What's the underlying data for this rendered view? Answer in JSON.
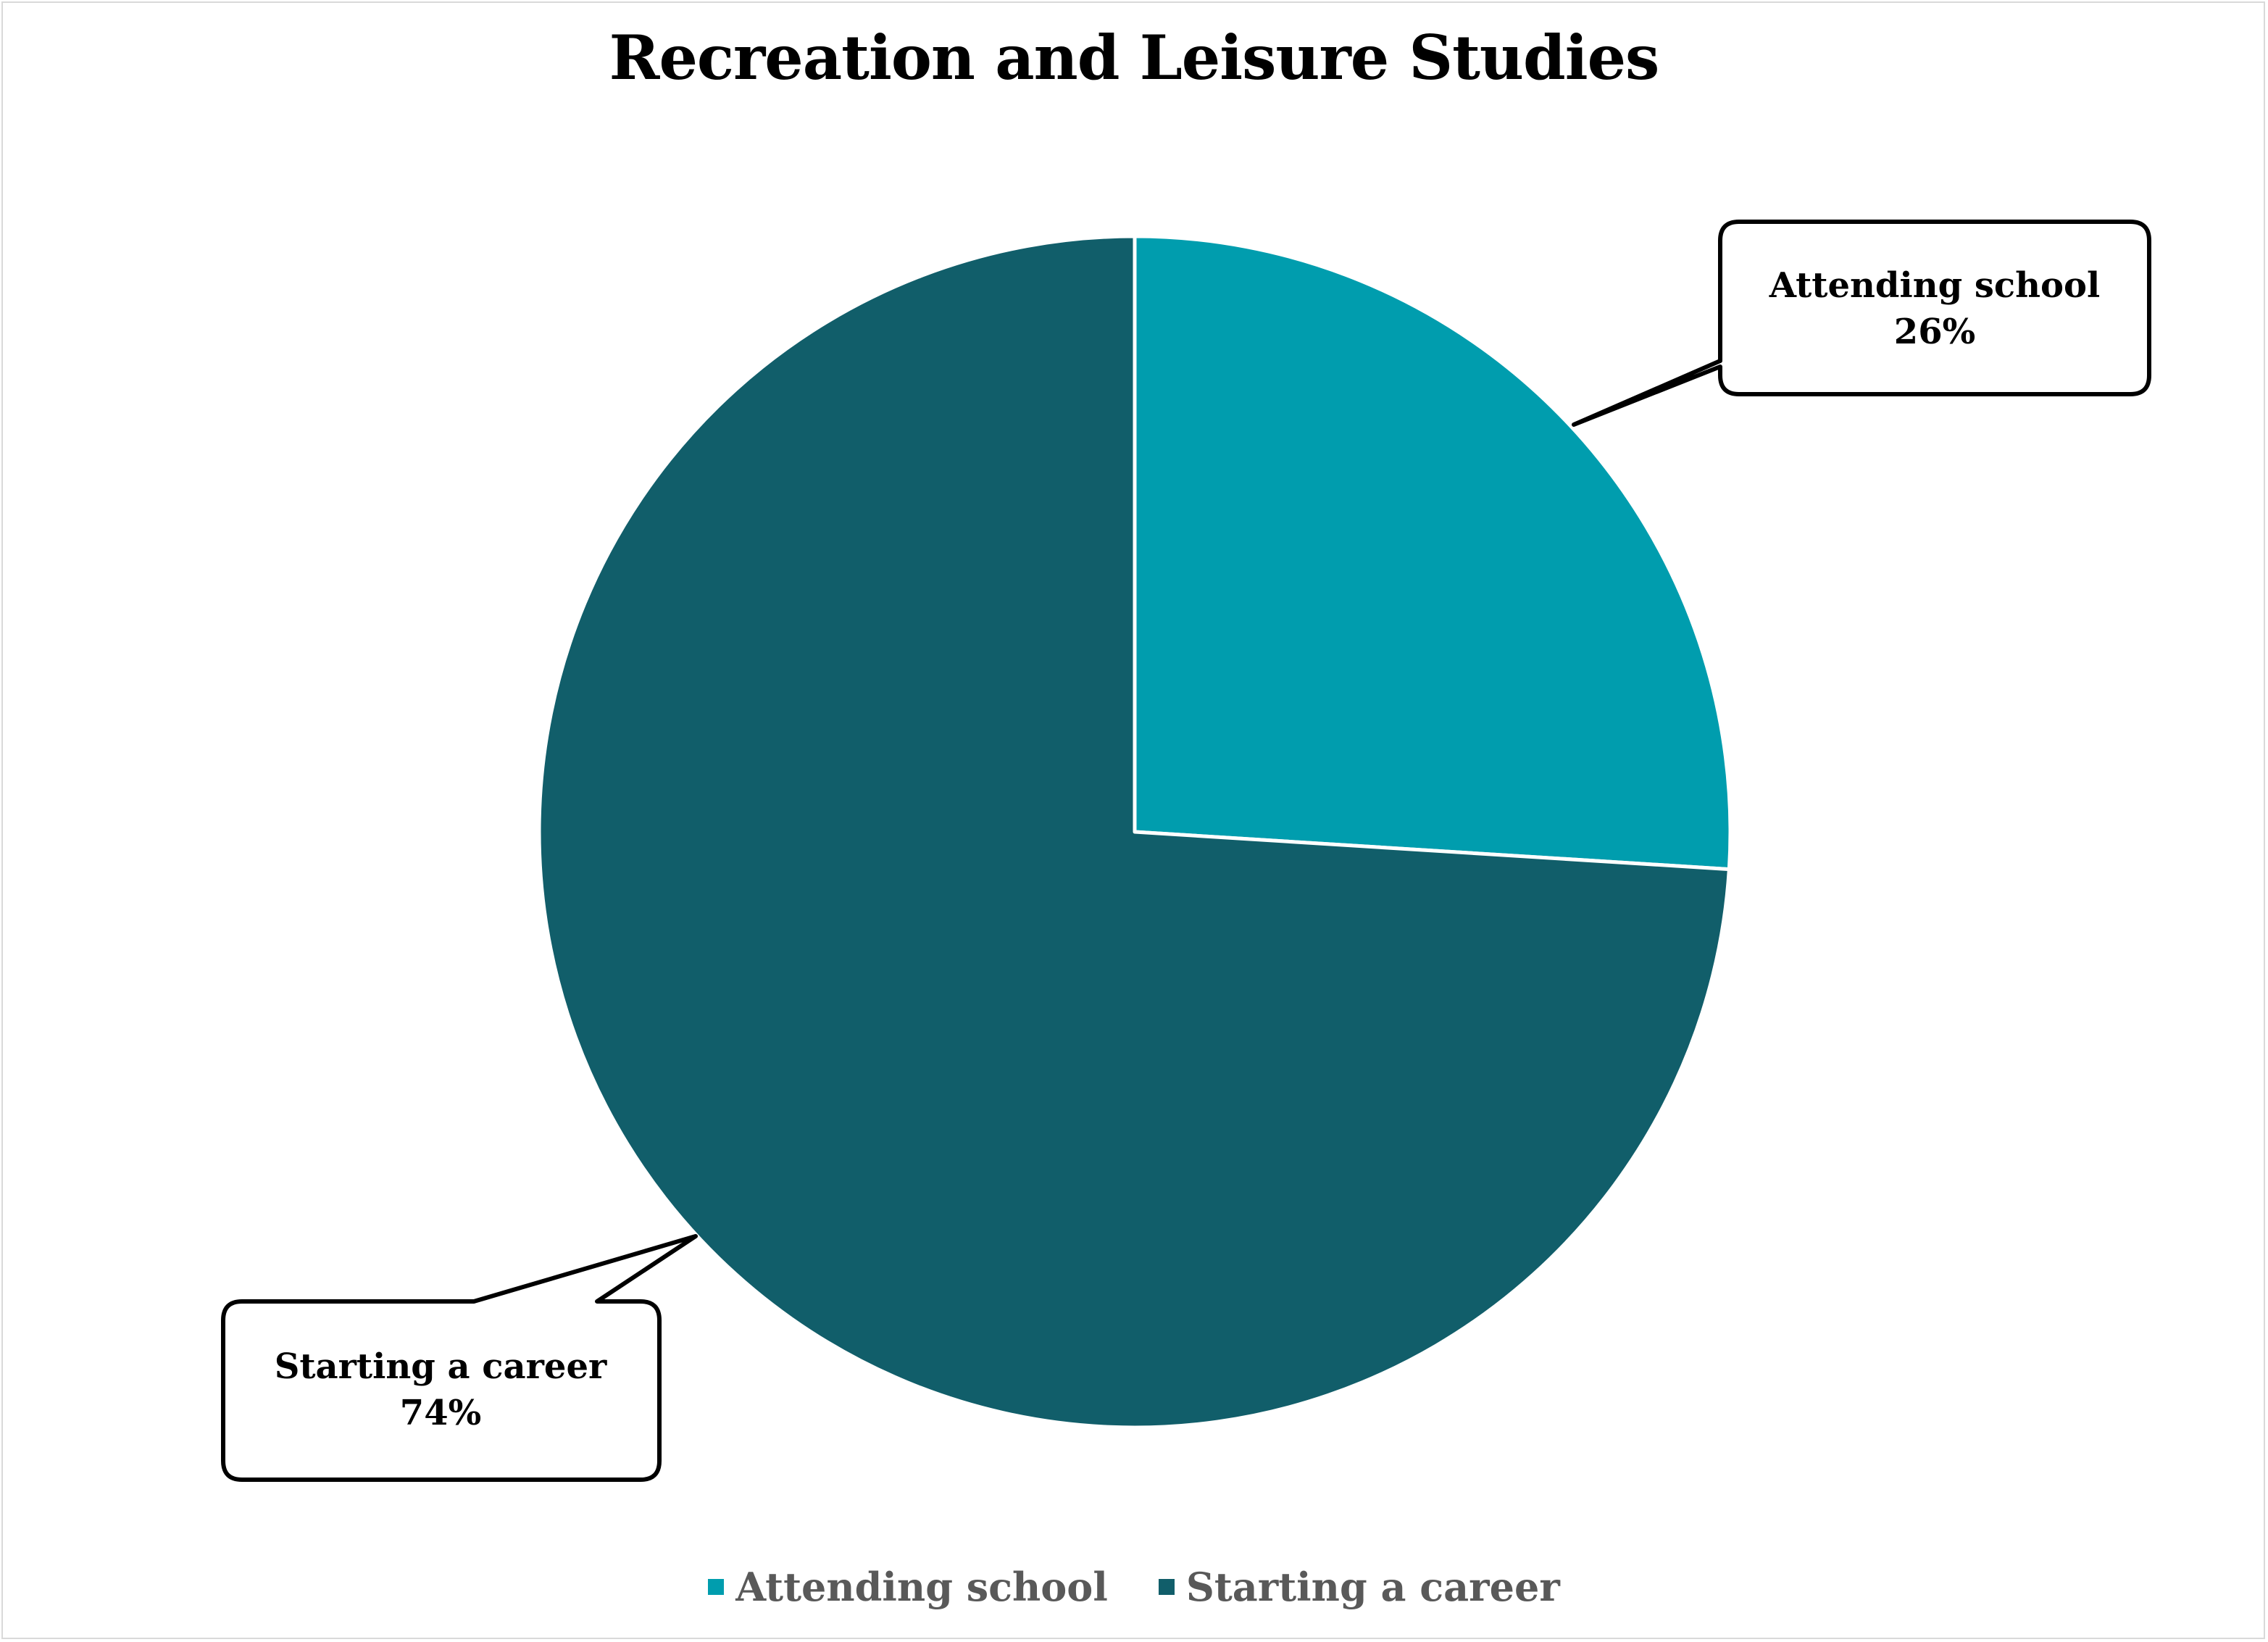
{
  "chart_data": {
    "type": "pie",
    "title": "Recreation and Leisure Studies",
    "categories": [
      "Attending school",
      "Starting a career"
    ],
    "values": [
      26,
      74
    ],
    "value_labels": [
      "26%",
      "74%"
    ],
    "colors": [
      "#009DAE",
      "#115E6A"
    ],
    "legend": {
      "position": "bottom",
      "entries": [
        "Attending school",
        "Starting a career"
      ]
    }
  }
}
